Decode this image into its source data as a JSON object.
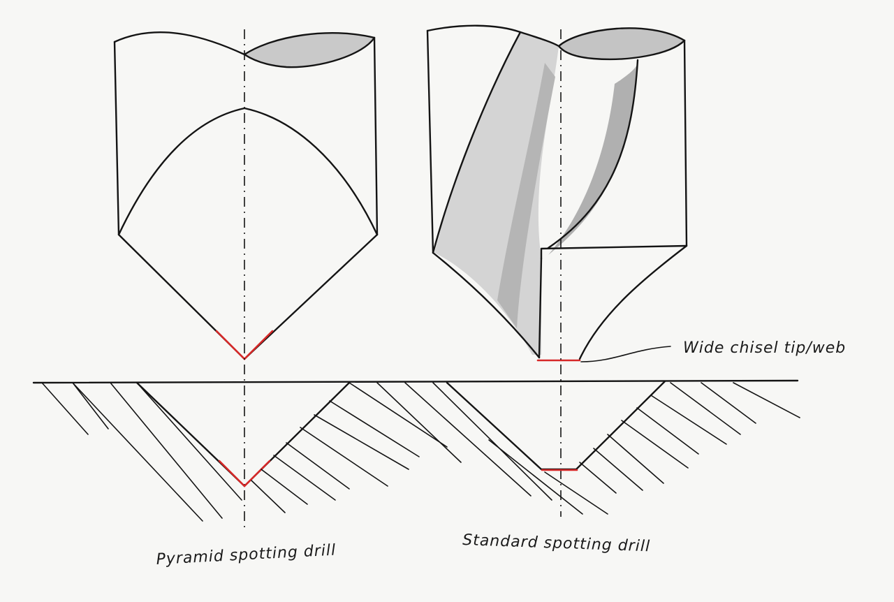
{
  "labels": {
    "chisel": "Wide chisel tip/web",
    "pyramid": "Pyramid spotting drill",
    "standard": "Standard spotting drill"
  },
  "colors": {
    "ink": "#141414",
    "highlight": "#d62828",
    "shade_light": "#cfcfcf",
    "shade_dark": "#a9a9a9",
    "paper": "#f7f7f5"
  }
}
